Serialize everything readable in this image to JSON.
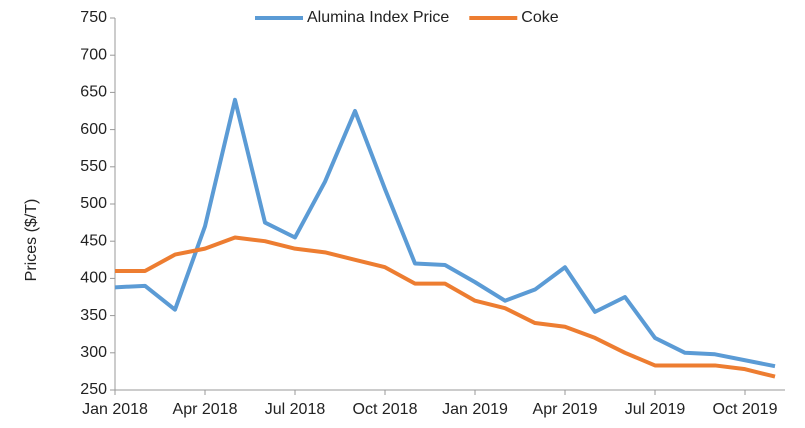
{
  "chart_data": {
    "type": "line",
    "y_label": "Prices ($/T)",
    "x": [
      "2018-01",
      "2018-02",
      "2018-03",
      "2018-04",
      "2018-05",
      "2018-06",
      "2018-07",
      "2018-08",
      "2018-09",
      "2018-10",
      "2018-11",
      "2018-12",
      "2019-01",
      "2019-02",
      "2019-03",
      "2019-04",
      "2019-05",
      "2019-06",
      "2019-07",
      "2019-08",
      "2019-09",
      "2019-10",
      "2019-11"
    ],
    "series": [
      {
        "name": "Alumina Index Price",
        "color": "#5b9bd5",
        "values": [
          388,
          390,
          358,
          470,
          640,
          475,
          455,
          530,
          625,
          520,
          420,
          418,
          395,
          370,
          385,
          415,
          355,
          375,
          320,
          300,
          298,
          290,
          282
        ]
      },
      {
        "name": "Coke",
        "color": "#ed7d31",
        "values": [
          410,
          410,
          432,
          440,
          455,
          450,
          440,
          435,
          425,
          415,
          393,
          393,
          370,
          360,
          340,
          335,
          320,
          300,
          283,
          283,
          283,
          278,
          268
        ]
      }
    ],
    "xlim": [
      "2018-01",
      "2019-11"
    ],
    "xticks": [
      {
        "value": "2018-01",
        "label": "Jan 2018"
      },
      {
        "value": "2018-04",
        "label": "Apr 2018"
      },
      {
        "value": "2018-07",
        "label": "Jul 2018"
      },
      {
        "value": "2018-10",
        "label": "Oct 2018"
      },
      {
        "value": "2019-01",
        "label": "Jan 2019"
      },
      {
        "value": "2019-04",
        "label": "Apr 2019"
      },
      {
        "value": "2019-07",
        "label": "Jul 2019"
      },
      {
        "value": "2019-10",
        "label": "Oct 2019"
      }
    ],
    "ylim": [
      250,
      750
    ],
    "yticks": [
      250,
      300,
      350,
      400,
      450,
      500,
      550,
      600,
      650,
      700,
      750
    ],
    "grid": false,
    "legend": "top"
  }
}
